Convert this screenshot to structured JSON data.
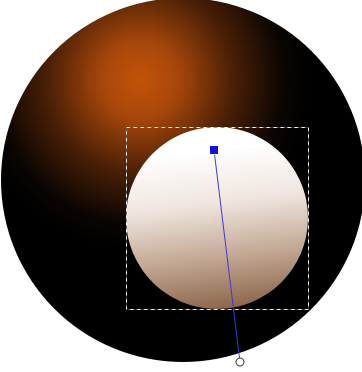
{
  "canvas": {
    "background_color": "#ffffff"
  },
  "large_sphere": {
    "shape": "circle",
    "gradient_type": "radial",
    "highlight_color": "#c2530a",
    "shadow_color": "#000000"
  },
  "small_sphere": {
    "shape": "circle",
    "gradient_type": "linear",
    "top_color": "#ffffff",
    "bottom_color": "#6e4a32",
    "selected": true
  },
  "selection_box": {
    "style": "dashed",
    "color": "#ffffff"
  },
  "gradient_handle": {
    "line_color": "#3a3ad8",
    "start_handle": {
      "shape": "square",
      "color": "#1010e0",
      "icon": "gradient-start-handle-icon"
    },
    "end_handle": {
      "shape": "circle",
      "color": "#ffffff",
      "icon": "gradient-end-handle-icon"
    }
  }
}
